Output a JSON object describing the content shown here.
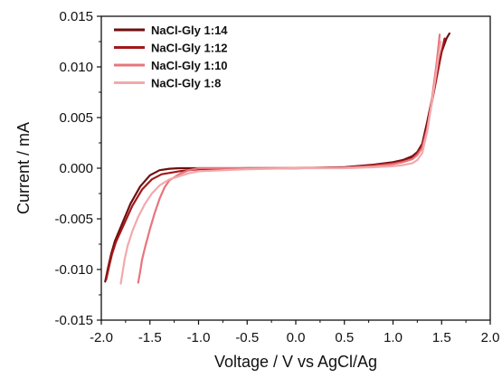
{
  "chart_data": {
    "type": "line",
    "xlabel": "Voltage / V vs AgCl/Ag",
    "ylabel": "Current / mA",
    "xlim": [
      -2.0,
      2.0
    ],
    "ylim": [
      -0.015,
      0.015
    ],
    "x_ticks": [
      -2.0,
      -1.5,
      -1.0,
      -0.5,
      0.0,
      0.5,
      1.0,
      1.5,
      2.0
    ],
    "x_tick_labels": [
      "-2.0",
      "-1.5",
      "-1.0",
      "-0.5",
      "0.0",
      "0.5",
      "1.0",
      "1.5",
      "2.0"
    ],
    "y_ticks": [
      -0.015,
      -0.01,
      -0.005,
      0.0,
      0.005,
      0.01,
      0.015
    ],
    "y_tick_labels": [
      "-0.015",
      "-0.010",
      "-0.005",
      "0.000",
      "0.005",
      "0.010",
      "0.015"
    ],
    "grid": false,
    "legend_position": "top-left",
    "series": [
      {
        "name": "NaCl-Gly 1:14",
        "color": "#6e0f0f",
        "x": [
          -1.96,
          -1.93,
          -1.9,
          -1.86,
          -1.8,
          -1.7,
          -1.6,
          -1.5,
          -1.4,
          -1.3,
          -1.2,
          -1.0,
          -0.5,
          0.0,
          0.5,
          0.8,
          1.0,
          1.1,
          1.2,
          1.25,
          1.3,
          1.35,
          1.4,
          1.45,
          1.5,
          1.55,
          1.58
        ],
        "y": [
          -0.0112,
          -0.0098,
          -0.0085,
          -0.0072,
          -0.0058,
          -0.0035,
          -0.0018,
          -0.0007,
          -0.0002,
          -5e-05,
          0.0,
          0.0,
          0.0,
          0.0,
          0.0001,
          0.00035,
          0.0006,
          0.0008,
          0.0012,
          0.0016,
          0.0024,
          0.0045,
          0.0068,
          0.0092,
          0.0115,
          0.0128,
          0.0133
        ]
      },
      {
        "name": "NaCl-Gly 1:12",
        "color": "#a3181a",
        "x": [
          -1.95,
          -1.92,
          -1.89,
          -1.85,
          -1.78,
          -1.68,
          -1.58,
          -1.48,
          -1.38,
          -1.2,
          -1.0,
          -0.5,
          0.0,
          0.5,
          0.8,
          1.0,
          1.1,
          1.2,
          1.25,
          1.3,
          1.35,
          1.4,
          1.45,
          1.5,
          1.53
        ],
        "y": [
          -0.011,
          -0.0097,
          -0.0085,
          -0.0073,
          -0.0058,
          -0.0037,
          -0.0021,
          -0.0011,
          -0.0006,
          -0.0003,
          -0.0001,
          0.0,
          0.0,
          5e-05,
          0.0003,
          0.0005,
          0.0007,
          0.001,
          0.0015,
          0.0022,
          0.004,
          0.0065,
          0.009,
          0.0115,
          0.0128
        ]
      },
      {
        "name": "NaCl-Gly 1:10",
        "color": "#e8747c",
        "x": [
          -1.62,
          -1.6,
          -1.58,
          -1.55,
          -1.5,
          -1.45,
          -1.4,
          -1.35,
          -1.3,
          -1.2,
          -1.1,
          -1.0,
          -0.5,
          0.0,
          0.5,
          0.8,
          1.0,
          1.1,
          1.2,
          1.25,
          1.3,
          1.35,
          1.4,
          1.45,
          1.48
        ],
        "y": [
          -0.0113,
          -0.0102,
          -0.009,
          -0.0078,
          -0.006,
          -0.0044,
          -0.003,
          -0.0019,
          -0.0012,
          -0.0006,
          -0.0002,
          0.0,
          0.0,
          0.0,
          5e-05,
          0.0002,
          0.0004,
          0.0006,
          0.0009,
          0.0013,
          0.002,
          0.0038,
          0.0068,
          0.0105,
          0.0132
        ]
      },
      {
        "name": "NaCl-Gly 1:8",
        "color": "#f2a9ab",
        "x": [
          -1.8,
          -1.78,
          -1.76,
          -1.73,
          -1.68,
          -1.62,
          -1.55,
          -1.48,
          -1.4,
          -1.3,
          -1.1,
          -1.0,
          -0.5,
          0.0,
          0.5,
          0.8,
          1.0,
          1.1,
          1.2,
          1.25,
          1.3,
          1.35,
          1.4,
          1.45,
          1.49
        ],
        "y": [
          -0.0114,
          -0.0102,
          -0.009,
          -0.0077,
          -0.0062,
          -0.0048,
          -0.0035,
          -0.0025,
          -0.0017,
          -0.0011,
          -0.0005,
          -0.0003,
          -0.0001,
          0.0,
          0.0,
          0.0001,
          0.0002,
          0.0003,
          0.0005,
          0.0008,
          0.0015,
          0.0035,
          0.0065,
          0.0098,
          0.0125
        ]
      }
    ]
  }
}
